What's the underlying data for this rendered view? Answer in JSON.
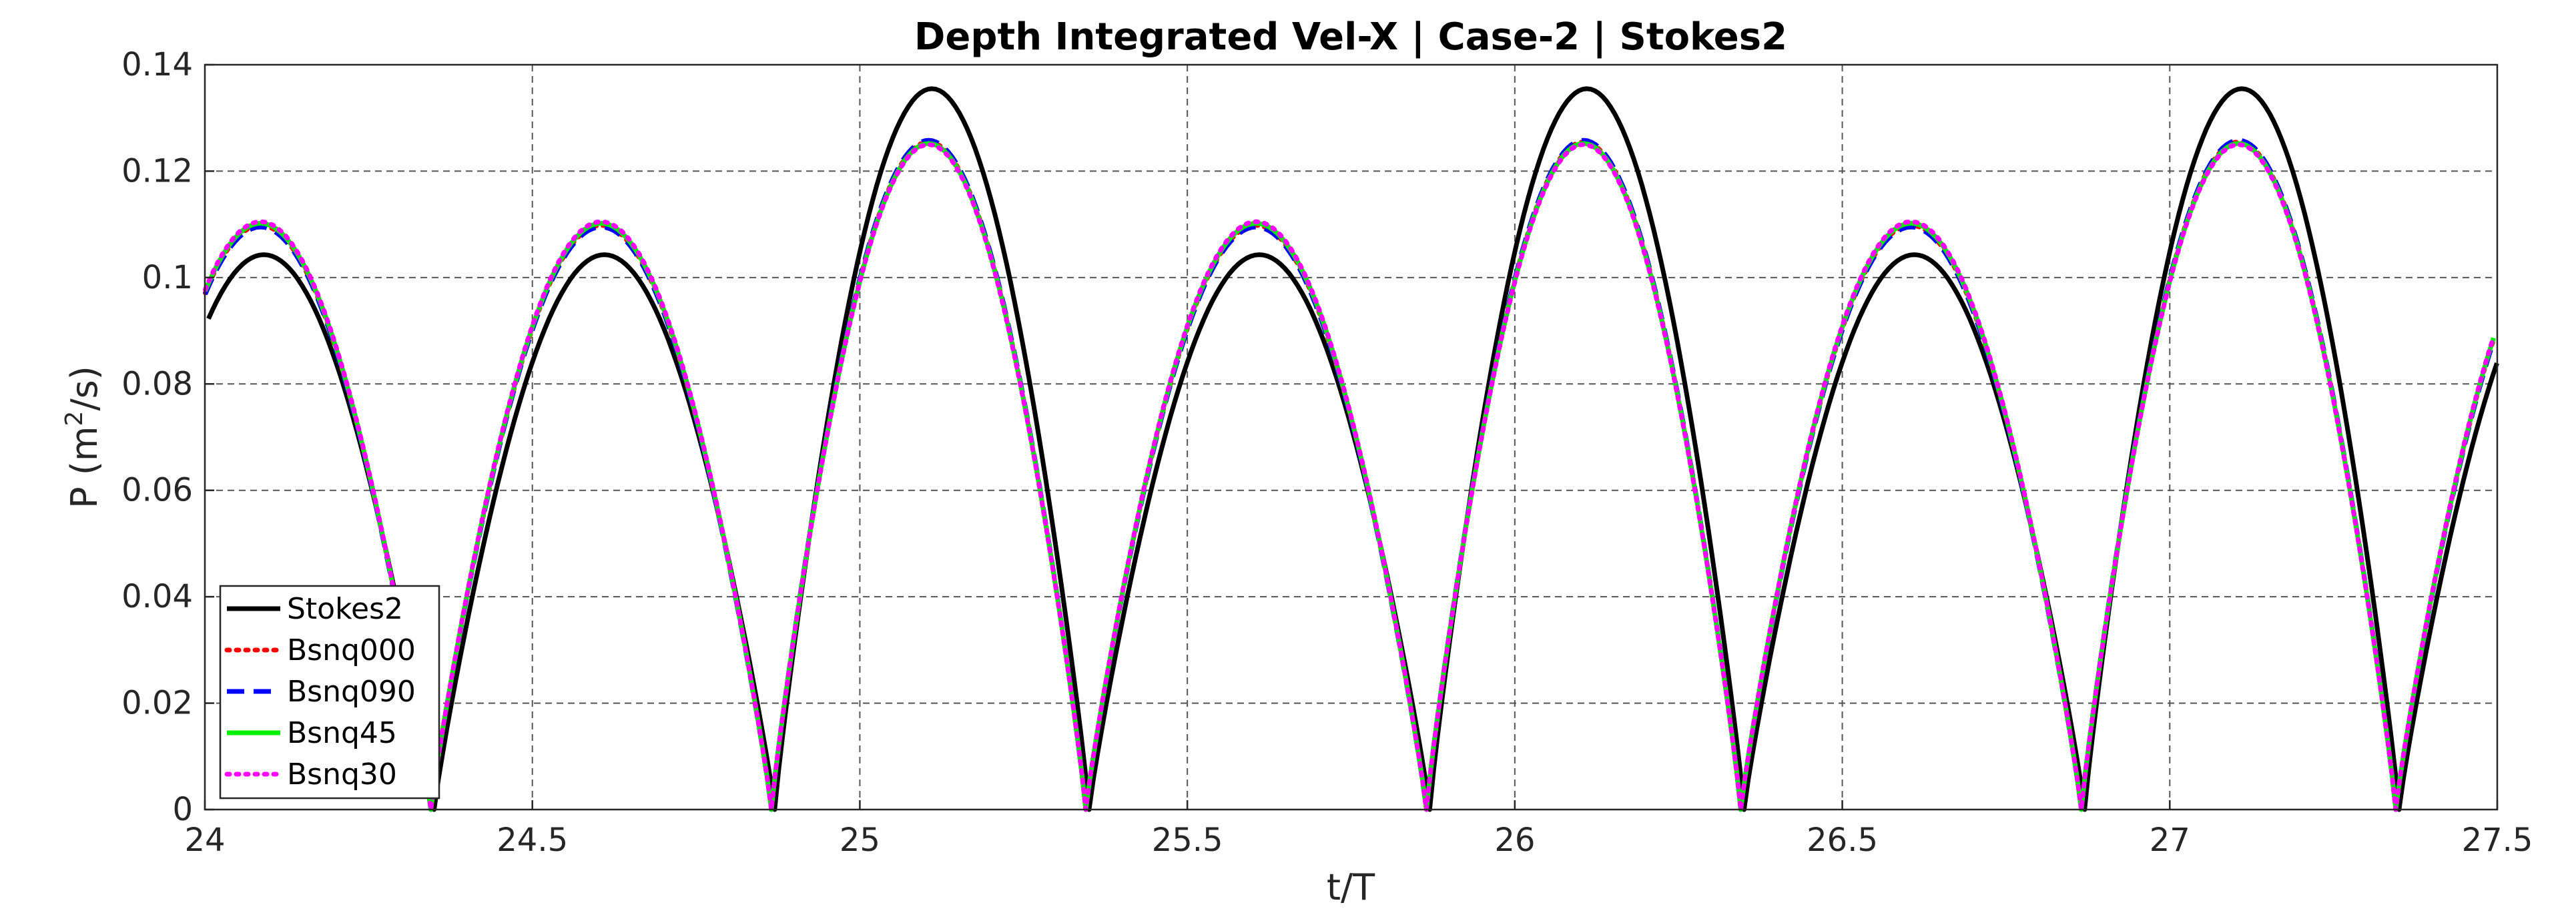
{
  "chart_data": {
    "type": "line",
    "title": "Depth Integrated Vel-X | Case-2 | Stokes2",
    "xlabel": "t/T",
    "ylabel_main": "P (m",
    "ylabel_sup": "2",
    "ylabel_end": "/s)",
    "xlim": [
      24,
      27.5
    ],
    "ylim": [
      0,
      0.14
    ],
    "xticks": [
      24,
      24.5,
      25,
      25.5,
      26,
      26.5,
      27,
      27.5
    ],
    "xtick_labels": [
      "24",
      "24.5",
      "25",
      "25.5",
      "26",
      "26.5",
      "27",
      "27.5"
    ],
    "yticks": [
      0,
      0.02,
      0.04,
      0.06,
      0.08,
      0.1,
      0.12,
      0.14
    ],
    "ytick_labels": [
      "0",
      "0.02",
      "0.04",
      "0.06",
      "0.08",
      "0.1",
      "0.12",
      "0.14"
    ],
    "grid": true,
    "legend_position": "bottom-left",
    "series": [
      {
        "name": "Stokes2",
        "color": "#000000",
        "style": "solid",
        "min_points": [
          24.35,
          24.87,
          25.35,
          25.87,
          26.35,
          26.87,
          27.35
        ],
        "peak_big": 0.1355,
        "peak_small": 0.1043,
        "peaks_at": [
          24.11,
          24.61,
          25.11,
          25.61,
          26.11,
          26.61,
          27.11
        ],
        "start_value": 0.101,
        "end_value": 0.089
      },
      {
        "name": "Bsnq000",
        "color": "#ff0000",
        "style": "dotted",
        "min_points": [
          24.345,
          24.865,
          25.345,
          25.865,
          26.345,
          26.865,
          27.345
        ],
        "peak_big": 0.1255,
        "peak_small": 0.1098,
        "peaks_at": [
          24.11,
          24.61,
          25.11,
          25.61,
          26.11,
          26.61,
          27.11
        ],
        "start_value": 0.091,
        "end_value": 0.095
      },
      {
        "name": "Bsnq090",
        "color": "#0000ff",
        "style": "dashed",
        "min_points": [
          24.345,
          24.865,
          25.345,
          25.865,
          26.345,
          26.865,
          27.345
        ],
        "peak_big": 0.1258,
        "peak_small": 0.1095,
        "peaks_at": [
          24.11,
          24.61,
          25.11,
          25.61,
          26.11,
          26.61,
          27.11
        ],
        "start_value": 0.091,
        "end_value": 0.095
      },
      {
        "name": "Bsnq45",
        "color": "#00ee00",
        "style": "solid",
        "min_points": [
          24.345,
          24.865,
          25.345,
          25.865,
          26.345,
          26.865,
          27.345
        ],
        "peak_big": 0.1252,
        "peak_small": 0.1102,
        "peaks_at": [
          24.11,
          24.61,
          25.11,
          25.61,
          26.11,
          26.61,
          27.11
        ],
        "start_value": 0.091,
        "end_value": 0.096
      },
      {
        "name": "Bsnq30",
        "color": "#ff00ff",
        "style": "dotted",
        "min_points": [
          24.345,
          24.865,
          25.345,
          25.865,
          26.345,
          26.865,
          27.345
        ],
        "peak_big": 0.125,
        "peak_small": 0.1105,
        "peaks_at": [
          24.11,
          24.61,
          25.11,
          25.61,
          26.11,
          26.61,
          27.11
        ],
        "start_value": 0.091,
        "end_value": 0.096
      }
    ]
  }
}
